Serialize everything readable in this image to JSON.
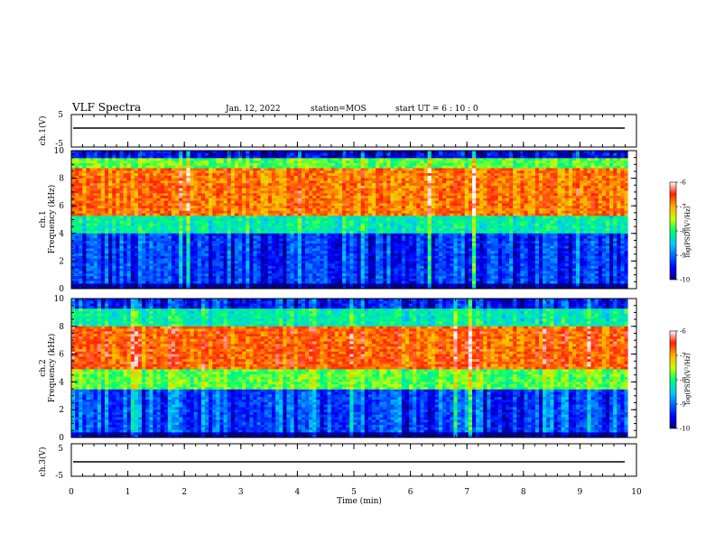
{
  "header": {
    "title": "VLF Spectra",
    "date": "Jan. 12, 2022",
    "station": "station=MOS",
    "start": "start UT =  6 : 10 : 0"
  },
  "chart_data": [
    {
      "type": "line",
      "name": "ch1-waveform",
      "ylabel": "ch.1(V)",
      "ylim": [
        -5,
        5
      ],
      "yticks": [
        "5",
        "-5"
      ],
      "x": [
        0,
        10
      ],
      "values": [
        0,
        0
      ],
      "color": "#000000"
    },
    {
      "type": "heatmap",
      "name": "ch1-spectrogram",
      "ylabel_top": "ch.1",
      "ylabel": "Frequency (kHz)",
      "ylim": [
        0,
        10
      ],
      "yticks": [
        "0",
        "2",
        "4",
        "6",
        "8",
        "10"
      ],
      "xlim": [
        0,
        9.85
      ],
      "colorbar": {
        "label": "log(PSD)(V²/Hz)",
        "range": [
          -10,
          -6
        ],
        "ticks": [
          "-6",
          "-7",
          "-8",
          "-9",
          "-10"
        ]
      },
      "bands": [
        {
          "f0": 0,
          "f1": 0.3,
          "level": -10
        },
        {
          "f0": 0.3,
          "f1": 4,
          "level": -9.3
        },
        {
          "f0": 4,
          "f1": 5.2,
          "level": -8.2
        },
        {
          "f0": 5.2,
          "f1": 8.8,
          "level": -6.8
        },
        {
          "f0": 8.8,
          "f1": 9.4,
          "level": -7.8
        },
        {
          "f0": 9.4,
          "f1": 10,
          "level": -9.6
        }
      ]
    },
    {
      "type": "heatmap",
      "name": "ch2-spectrogram",
      "ylabel_top": "ch.2",
      "ylabel": "Frequency (kHz)",
      "ylim": [
        0,
        10
      ],
      "yticks": [
        "0",
        "2",
        "4",
        "6",
        "8",
        "10"
      ],
      "xlim": [
        0,
        9.85
      ],
      "colorbar": {
        "label": "log(PSD)(V²/Hz)",
        "range": [
          -10,
          -6
        ],
        "ticks": [
          "-6",
          "-7",
          "-8",
          "-9",
          "-10"
        ]
      },
      "bands": [
        {
          "f0": 0,
          "f1": 0.3,
          "level": -10
        },
        {
          "f0": 0.3,
          "f1": 3.5,
          "level": -9.2
        },
        {
          "f0": 3.5,
          "f1": 5,
          "level": -7.8
        },
        {
          "f0": 5,
          "f1": 8,
          "level": -6.7
        },
        {
          "f0": 8,
          "f1": 9.3,
          "level": -8.2
        },
        {
          "f0": 9.3,
          "f1": 10,
          "level": -9.4
        }
      ]
    },
    {
      "type": "line",
      "name": "ch3-waveform",
      "ylabel": "ch.3(V)",
      "ylim": [
        -5,
        5
      ],
      "yticks": [
        "5",
        "-5"
      ],
      "x": [
        0,
        10
      ],
      "values": [
        0,
        0
      ],
      "color": "#000000"
    }
  ],
  "xaxis": {
    "label": "Time (min)",
    "range": [
      0,
      10
    ],
    "ticks": [
      "0",
      "1",
      "2",
      "3",
      "4",
      "5",
      "6",
      "7",
      "8",
      "9",
      "10"
    ]
  },
  "colors": {
    "frame": "#000000",
    "background": "#ffffff"
  }
}
